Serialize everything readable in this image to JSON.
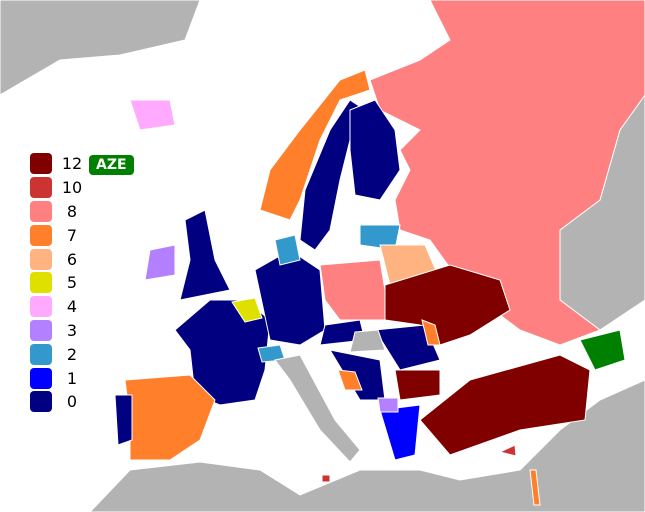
{
  "legend": [
    {
      "label": "12",
      "color": "#800000"
    },
    {
      "label": "10",
      "color": "#cc3333"
    },
    {
      "label": "8",
      "color": "#ff8080"
    },
    {
      "label": "7",
      "color": "#ff7f2a"
    },
    {
      "label": "6",
      "color": "#ffb380"
    },
    {
      "label": "5",
      "color": "#e0e000"
    },
    {
      "label": "4",
      "color": "#ffaaff"
    },
    {
      "label": "3",
      "color": "#b380ff"
    },
    {
      "label": "2",
      "color": "#3399cc"
    },
    {
      "label": "1",
      "color": "#0000ff"
    },
    {
      "label": "0",
      "color": "#000080"
    }
  ],
  "highlight": {
    "label": "AZE",
    "color": "#008000"
  },
  "colors": {
    "land": "#b3b3b3",
    "sea": "#ffffff",
    "border": "#ffffff"
  },
  "regions": [
    {
      "score": "land"
    },
    {
      "score": "land"
    },
    {
      "score": "land"
    },
    {
      "score": "8"
    },
    {
      "score": "7"
    },
    {
      "score": "0"
    },
    {
      "score": "0"
    },
    {
      "score": "0"
    },
    {
      "score": "3"
    },
    {
      "score": "4"
    },
    {
      "score": "0"
    },
    {
      "score": "7"
    },
    {
      "score": "0"
    },
    {
      "score": "0"
    },
    {
      "score": "5"
    },
    {
      "score": "2"
    },
    {
      "score": "land"
    },
    {
      "score": "8"
    },
    {
      "score": "2"
    },
    {
      "score": "6"
    },
    {
      "score": "12"
    },
    {
      "score": "0"
    },
    {
      "score": "12"
    },
    {
      "score": "1"
    },
    {
      "score": "12"
    },
    {
      "score": "AZE"
    },
    {
      "score": "2"
    },
    {
      "score": "0"
    },
    {
      "score": "7"
    },
    {
      "score": "3"
    },
    {
      "score": "0"
    },
    {
      "score": "land"
    },
    {
      "score": "7"
    },
    {
      "score": "10"
    },
    {
      "score": "7"
    },
    {
      "score": "10"
    }
  ]
}
